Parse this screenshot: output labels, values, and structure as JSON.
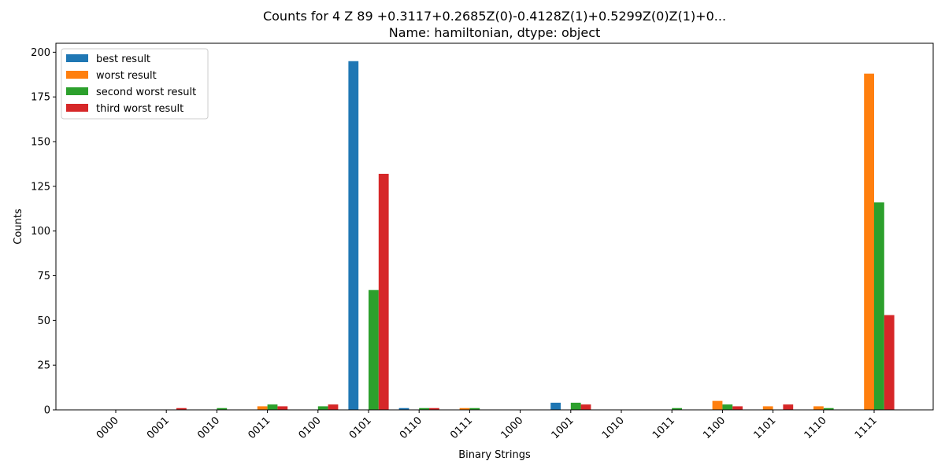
{
  "chart_data": {
    "type": "bar",
    "title_line1": "Counts for 4 Z 89    +0.3117+0.2685Z(0)-0.4128Z(1)+0.5299Z(0)Z(1)+0...",
    "title_line2": "Name: hamiltonian, dtype: object",
    "xlabel": "Binary Strings",
    "ylabel": "Counts",
    "ylim": [
      0,
      205
    ],
    "yticks": [
      0,
      25,
      50,
      75,
      100,
      125,
      150,
      175,
      200
    ],
    "legend_position": "top-left",
    "grid": false,
    "categories": [
      "0000",
      "0001",
      "0010",
      "0011",
      "0100",
      "0101",
      "0110",
      "0111",
      "1000",
      "1001",
      "1010",
      "1011",
      "1100",
      "1101",
      "1110",
      "1111"
    ],
    "series": [
      {
        "name": "best result",
        "color": "#1f77b4",
        "values": [
          0,
          0,
          0,
          0,
          0,
          195,
          1,
          0,
          0,
          4,
          0,
          0,
          0,
          0,
          0,
          0
        ]
      },
      {
        "name": "worst result",
        "color": "#ff7f0e",
        "values": [
          0,
          0,
          0,
          2,
          0,
          0,
          0,
          1,
          0,
          0,
          0,
          0,
          5,
          2,
          2,
          188
        ]
      },
      {
        "name": "second worst result",
        "color": "#2ca02c",
        "values": [
          0,
          0,
          1,
          3,
          2,
          67,
          1,
          1,
          0,
          4,
          0,
          1,
          3,
          0,
          1,
          116
        ]
      },
      {
        "name": "third worst result",
        "color": "#d62728",
        "values": [
          0,
          1,
          0,
          2,
          3,
          132,
          1,
          0,
          0,
          3,
          0,
          0,
          2,
          3,
          0,
          53
        ]
      }
    ]
  }
}
